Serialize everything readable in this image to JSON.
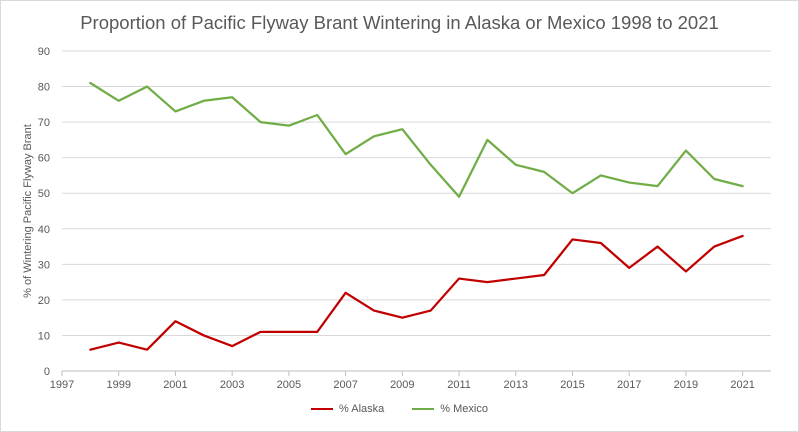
{
  "chart_data": {
    "type": "line",
    "title": "Proportion of Pacific Flyway Brant Wintering in Alaska or Mexico 1998 to 2021",
    "xlabel": "",
    "ylabel": "% of Wintering Pacific Flyway Brant",
    "xlim": [
      1997,
      2022
    ],
    "ylim": [
      0,
      90
    ],
    "x_ticks": [
      "1997",
      "1999",
      "2001",
      "2003",
      "2005",
      "2007",
      "2009",
      "2011",
      "2013",
      "2015",
      "2017",
      "2019",
      "2021"
    ],
    "y_ticks": [
      "0",
      "10",
      "20",
      "30",
      "40",
      "50",
      "60",
      "70",
      "80",
      "90"
    ],
    "grid": "horizontal",
    "legend_position": "bottom",
    "x": [
      1998,
      1999,
      2000,
      2001,
      2002,
      2003,
      2004,
      2005,
      2006,
      2007,
      2008,
      2009,
      2010,
      2011,
      2012,
      2013,
      2014,
      2015,
      2016,
      2017,
      2018,
      2019,
      2020,
      2021
    ],
    "series": [
      {
        "name": "% Alaska",
        "color": "#c00000",
        "values": [
          6,
          8,
          6,
          14,
          10,
          7,
          11,
          11,
          11,
          22,
          17,
          15,
          17,
          26,
          25,
          26,
          27,
          37,
          36,
          29,
          35,
          28,
          35,
          38
        ]
      },
      {
        "name": "% Mexico",
        "color": "#70ad47",
        "values": [
          81,
          76,
          80,
          73,
          76,
          77,
          70,
          69,
          72,
          61,
          66,
          68,
          58,
          49,
          65,
          58,
          56,
          50,
          55,
          53,
          52,
          62,
          54,
          52
        ]
      }
    ]
  }
}
